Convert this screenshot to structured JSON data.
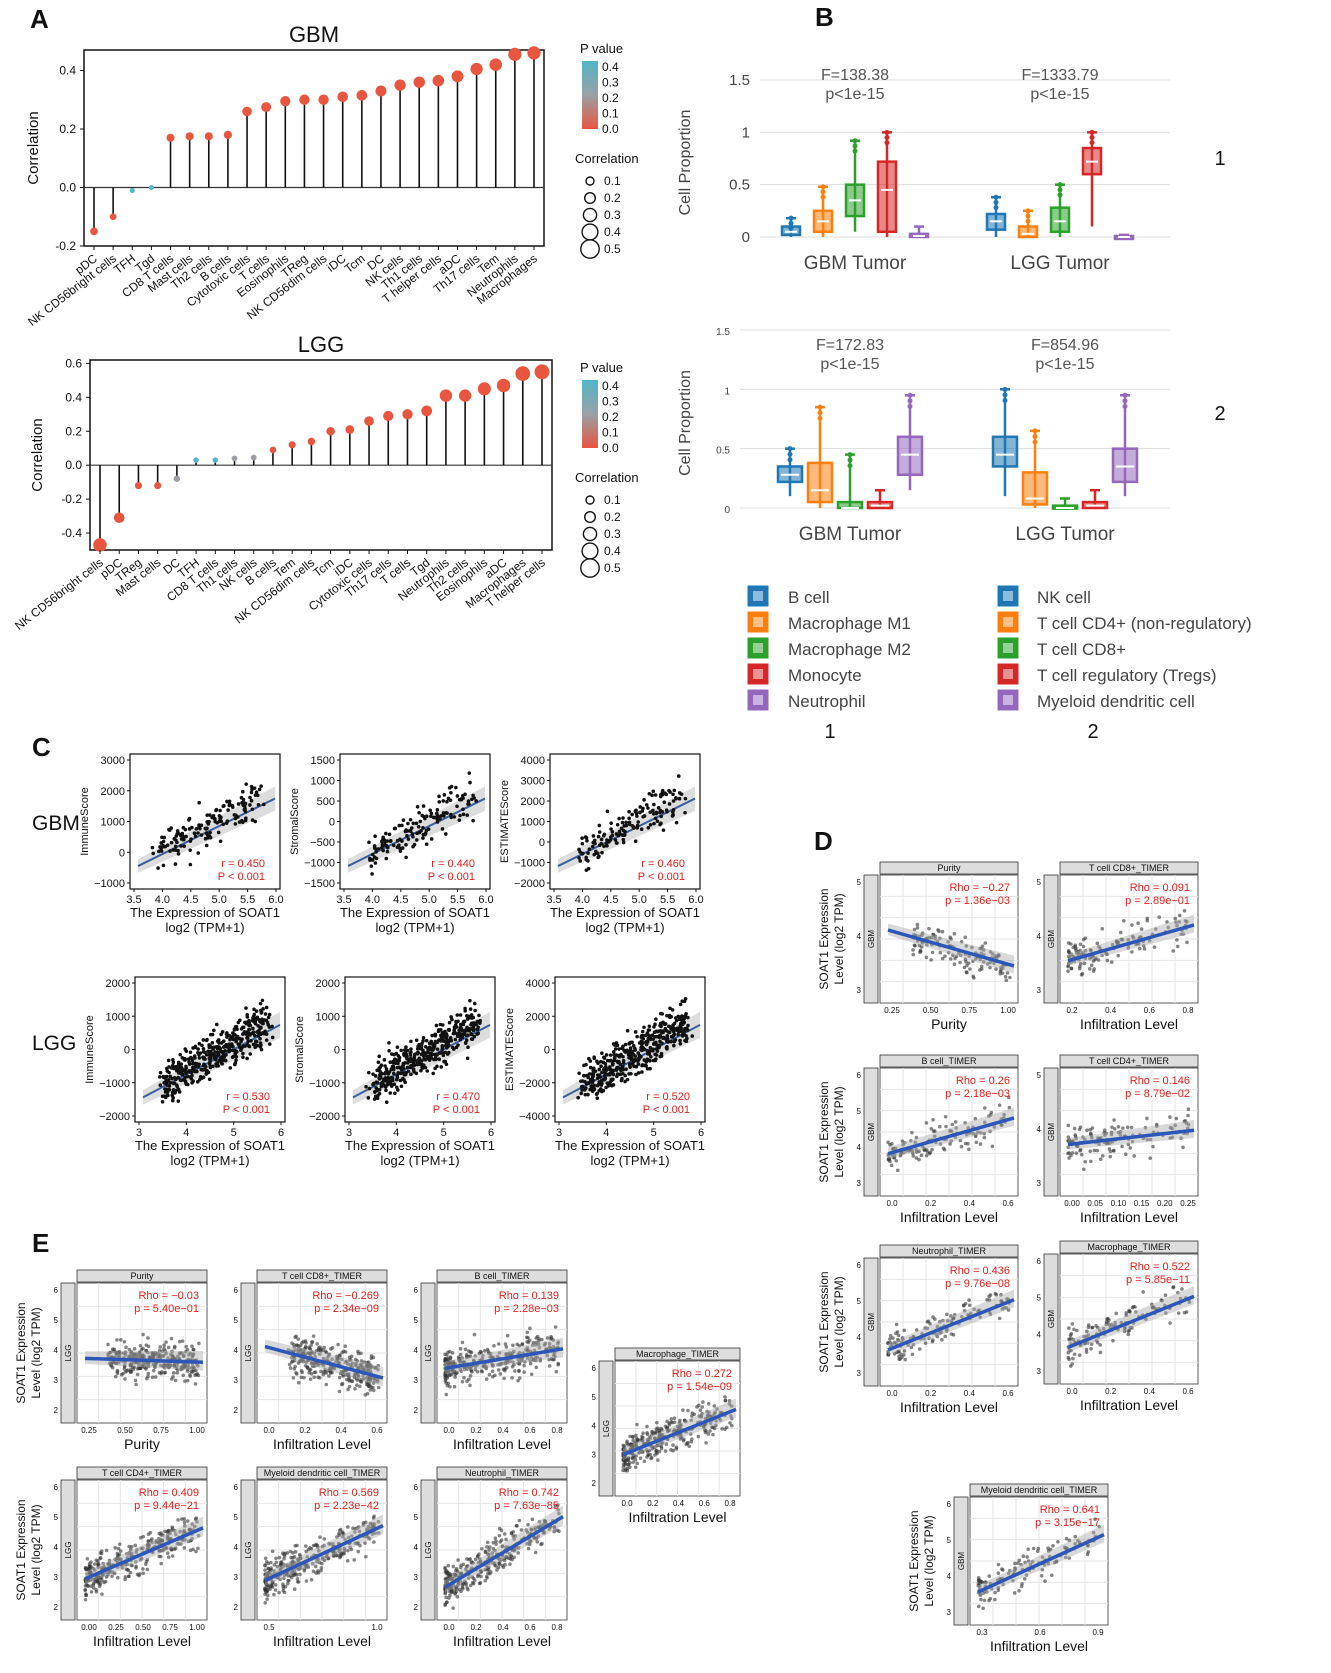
{
  "panels": {
    "A": "A",
    "B": "B",
    "C": "C",
    "D": "D",
    "E": "E"
  },
  "colors": {
    "low_p": "#e8563f",
    "high_p": "#4fb7c9",
    "mid_p": "#9aa0a6",
    "reg_line": "#3b5e9c",
    "timer_line": "#2c56b8",
    "red_text": "#e0201b",
    "box_b": "#1f77b4",
    "box_orange": "#ff7f0e",
    "box_green": "#2ca02c",
    "box_red": "#d62728",
    "box_purple": "#9467bd"
  },
  "chart_data": [
    {
      "id": "A-GBM",
      "type": "lollipop",
      "title": "GBM",
      "ylabel": "Correlation",
      "ylim": [
        -0.2,
        0.47
      ],
      "yticks": [
        "0.4",
        "0.2",
        "0.0",
        "-0.2"
      ],
      "categories": [
        "pDC",
        "NK CD56bright cells",
        "TFH",
        "Tgd",
        "CD8 T cells",
        "Mast cells",
        "Th2 cells",
        "B cells",
        "Cytotoxic cells",
        "T cells",
        "Eosinophils",
        "TReg",
        "NK CD56dim cells",
        "iDC",
        "Tcm",
        "DC",
        "NK cells",
        "Th1 cells",
        "T helper cells",
        "aDC",
        "Th17 cells",
        "Tem",
        "Neutrophils",
        "Macrophages"
      ],
      "values": [
        -0.15,
        -0.1,
        -0.01,
        0.0,
        0.17,
        0.175,
        0.175,
        0.18,
        0.26,
        0.275,
        0.295,
        0.3,
        0.3,
        0.31,
        0.315,
        0.33,
        0.35,
        0.36,
        0.365,
        0.38,
        0.405,
        0.42,
        0.455,
        0.46
      ],
      "pvalues": [
        0.0,
        0.02,
        0.35,
        0.4,
        0,
        0,
        0,
        0,
        0,
        0,
        0,
        0,
        0,
        0,
        0,
        0,
        0,
        0,
        0,
        0,
        0,
        0,
        0,
        0
      ],
      "legend": {
        "p_title": "P value",
        "p_ticks": [
          "0.4",
          "0.3",
          "0.2",
          "0.1",
          "0.0"
        ],
        "size_title": "Correlation",
        "size_ticks": [
          "0.1",
          "0.2",
          "0.3",
          "0.4",
          "0.5"
        ]
      }
    },
    {
      "id": "A-LGG",
      "type": "lollipop",
      "title": "LGG",
      "ylabel": "Correlation",
      "ylim": [
        -0.5,
        0.62
      ],
      "yticks": [
        "0.6",
        "0.4",
        "0.2",
        "0.0",
        "-0.2",
        "-0.4"
      ],
      "categories": [
        "NK CD56bright cells",
        "pDC",
        "TReg",
        "Mast cells",
        "DC",
        "TFH",
        "CD8 T cells",
        "Th1 cells",
        "NK cells",
        "B cells",
        "Tem",
        "NK CD56dim cells",
        "Tcm",
        "iDC",
        "Cytotoxic cells",
        "Th17 cells",
        "T cells",
        "Tgd",
        "Neutrophils",
        "Th2 cells",
        "Eosinophils",
        "aDC",
        "Macrophages",
        "T helper cells"
      ],
      "values": [
        -0.47,
        -0.31,
        -0.12,
        -0.12,
        -0.08,
        0.03,
        0.03,
        0.04,
        0.045,
        0.09,
        0.12,
        0.14,
        0.2,
        0.21,
        0.26,
        0.29,
        0.3,
        0.32,
        0.41,
        0.41,
        0.45,
        0.47,
        0.54,
        0.55
      ],
      "pvalues": [
        0,
        0,
        0,
        0,
        0.2,
        0.4,
        0.4,
        0.25,
        0.25,
        0,
        0,
        0,
        0,
        0,
        0,
        0,
        0,
        0,
        0,
        0,
        0,
        0,
        0,
        0
      ],
      "legend": {
        "p_title": "P value",
        "p_ticks": [
          "0.4",
          "0.3",
          "0.2",
          "0.1",
          "0.0"
        ],
        "size_title": "Correlation",
        "size_ticks": [
          "0.1",
          "0.2",
          "0.3",
          "0.4",
          "0.5"
        ]
      }
    },
    {
      "id": "B-1",
      "type": "box",
      "ylabel": "Cell Proportion",
      "yticks": [
        "1.5",
        "1",
        "0.5",
        "0"
      ],
      "ylim": [
        0,
        1.5
      ],
      "groups": [
        "GBM Tumor",
        "LGG Tumor"
      ],
      "stats": [
        {
          "F": "F=138.38",
          "p": "p<1e-15"
        },
        {
          "F": "F=1333.79",
          "p": "p<1e-15"
        }
      ],
      "series": [
        "B cell",
        "Macrophage M1",
        "Macrophage M2",
        "Monocyte",
        "Neutrophil"
      ],
      "boxes": [
        [
          [
            0,
            0.02,
            0.05,
            0.1,
            0.18
          ],
          [
            0,
            0.05,
            0.15,
            0.25,
            0.48
          ],
          [
            0.05,
            0.2,
            0.35,
            0.5,
            0.92
          ],
          [
            0,
            0.05,
            0.45,
            0.72,
            1.0
          ],
          [
            0,
            0,
            0.01,
            0.03,
            0.1
          ]
        ],
        [
          [
            0,
            0.07,
            0.15,
            0.22,
            0.38
          ],
          [
            0,
            0,
            0.03,
            0.1,
            0.25
          ],
          [
            0,
            0.05,
            0.15,
            0.28,
            0.5
          ],
          [
            0.1,
            0.6,
            0.72,
            0.85,
            1.0
          ],
          [
            0,
            0,
            0.0,
            0.01,
            0.02
          ]
        ]
      ],
      "marker": "1"
    },
    {
      "id": "B-2",
      "type": "box",
      "ylabel": "Cell Proportion",
      "yticks": [
        "1.5",
        "1",
        "0.5",
        "0"
      ],
      "ylim": [
        0,
        1.5
      ],
      "groups": [
        "GBM Tumor",
        "LGG Tumor"
      ],
      "stats": [
        {
          "F": "F=172.83",
          "p": "p<1e-15"
        },
        {
          "F": "F=854.96",
          "p": "p<1e-15"
        }
      ],
      "series": [
        "NK cell",
        "T cell CD4+ (non-regulatory)",
        "T cell CD8+",
        "T cell regulatory (Tregs)",
        "Myeloid dendritic cell"
      ],
      "boxes": [
        [
          [
            0.1,
            0.22,
            0.28,
            0.35,
            0.5
          ],
          [
            0,
            0.05,
            0.15,
            0.38,
            0.85
          ],
          [
            0,
            0,
            0.0,
            0.05,
            0.45
          ],
          [
            0,
            0,
            0.02,
            0.05,
            0.15
          ],
          [
            0.15,
            0.28,
            0.45,
            0.6,
            0.95
          ]
        ],
        [
          [
            0.1,
            0.35,
            0.45,
            0.6,
            1.0
          ],
          [
            0,
            0.03,
            0.08,
            0.3,
            0.65
          ],
          [
            0,
            0,
            0.0,
            0.02,
            0.08
          ],
          [
            0,
            0,
            0.02,
            0.05,
            0.15
          ],
          [
            0.1,
            0.22,
            0.35,
            0.5,
            0.95
          ]
        ]
      ],
      "marker": "2"
    },
    {
      "id": "C",
      "type": "scatter_grid",
      "rows": [
        "GBM",
        "LGG"
      ],
      "plots": [
        {
          "row": 0,
          "ylabel": "ImmuneScore",
          "yticks": [
            "3000",
            "2000",
            "1000",
            "0",
            "−1000"
          ],
          "xticks": [
            "3.5",
            "4.0",
            "4.5",
            "5.0",
            "5.5",
            "6.0"
          ],
          "r": "r = 0.450",
          "p": "P < 0.001",
          "xlabel": "The Expression of SOAT1",
          "xlabel2": "log2 (TPM+1)"
        },
        {
          "row": 0,
          "ylabel": "StromalScore",
          "yticks": [
            "1500",
            "1000",
            "500",
            "0",
            "−500",
            "−1000",
            "−1500"
          ],
          "xticks": [
            "3.5",
            "4.0",
            "4.5",
            "5.0",
            "5.5",
            "6.0"
          ],
          "r": "r = 0.440",
          "p": "P < 0.001",
          "xlabel": "The Expression of SOAT1",
          "xlabel2": "log2 (TPM+1)"
        },
        {
          "row": 0,
          "ylabel": "ESTIMATEScore",
          "yticks": [
            "4000",
            "3000",
            "2000",
            "1000",
            "0",
            "−1000",
            "−2000"
          ],
          "xticks": [
            "3.5",
            "4.0",
            "4.5",
            "5.0",
            "5.5",
            "6.0"
          ],
          "r": "r = 0.460",
          "p": "P < 0.001",
          "xlabel": "The Expression of SOAT1",
          "xlabel2": "log2 (TPM+1)"
        },
        {
          "row": 1,
          "ylabel": "ImmuneScore",
          "yticks": [
            "2000",
            "1000",
            "0",
            "−1000",
            "−2000"
          ],
          "xticks": [
            "3",
            "4",
            "5",
            "6"
          ],
          "r": "r = 0.530",
          "p": "P < 0.001",
          "xlabel": "The Expression of SOAT1",
          "xlabel2": "log2 (TPM+1)"
        },
        {
          "row": 1,
          "ylabel": "StromalScore",
          "yticks": [
            "2000",
            "1000",
            "0",
            "−1000",
            "−2000"
          ],
          "xticks": [
            "3",
            "4",
            "5",
            "6"
          ],
          "r": "r = 0.470",
          "p": "P < 0.001",
          "xlabel": "The Expression of SOAT1",
          "xlabel2": "log2 (TPM+1)"
        },
        {
          "row": 1,
          "ylabel": "ESTIMATEScore",
          "yticks": [
            "4000",
            "2000",
            "0",
            "−2000",
            "−4000"
          ],
          "xticks": [
            "3",
            "4",
            "5",
            "6"
          ],
          "r": "r = 0.520",
          "p": "P < 0.001",
          "xlabel": "The Expression of SOAT1",
          "xlabel2": "log2 (TPM+1)"
        }
      ]
    },
    {
      "id": "D",
      "type": "timer_grid",
      "ylabel": "SOAT1 Expression",
      "ylabel2": "Level (log2 TPM)",
      "side": "GBM",
      "plots": [
        {
          "title": "Purity",
          "rho": "Rho = −0.27",
          "p": "p = 1.36e−03",
          "xlabel": "Purity",
          "xticks": [
            "0.25",
            "0.50",
            "0.75",
            "1.00"
          ],
          "yticks": [
            "5",
            "4",
            "3"
          ],
          "slope": -1
        },
        {
          "title": "T cell CD8+_TIMER",
          "rho": "Rho = 0.091",
          "p": "p = 2.89e−01",
          "xlabel": "Infiltration Level",
          "xticks": [
            "0.2",
            "0.4",
            "0.6",
            "0.8"
          ],
          "yticks": [
            "5",
            "4",
            "3"
          ],
          "slope": 1
        },
        {
          "title": "B cell_TIMER",
          "rho": "Rho = 0.26",
          "p": "p = 2.18e−03",
          "xlabel": "Infiltration Level",
          "xticks": [
            "0.0",
            "0.2",
            "0.4",
            "0.6"
          ],
          "yticks": [
            "6",
            "5",
            "4",
            "3"
          ],
          "slope": 1
        },
        {
          "title": "T cell CD4+_TIMER",
          "rho": "Rho = 0.146",
          "p": "p = 8.79e−02",
          "xlabel": "Infiltration Level",
          "xticks": [
            "0.00",
            "0.05",
            "0.10",
            "0.15",
            "0.20",
            "0.25"
          ],
          "yticks": [
            "5",
            "4",
            "3"
          ],
          "slope": 0.4
        },
        {
          "title": "Neutrophil_TIMER",
          "rho": "Rho = 0.436",
          "p": "p = 9.76e−08",
          "xlabel": "Infiltration Level",
          "xticks": [
            "0.0",
            "0.2",
            "0.4",
            "0.6"
          ],
          "yticks": [
            "6",
            "5",
            "4",
            "3"
          ],
          "slope": 1.4
        },
        {
          "title": "Macrophage_TIMER",
          "rho": "Rho = 0.522",
          "p": "p = 5.85e−11",
          "xlabel": "Infiltration Level",
          "xticks": [
            "0.0",
            "0.2",
            "0.4",
            "0.6"
          ],
          "yticks": [
            "6",
            "5",
            "4",
            "3"
          ],
          "slope": 1.4
        },
        {
          "title": "Myeloid dendritic cell_TIMER",
          "rho": "Rho = 0.641",
          "p": "p = 3.15e−17",
          "xlabel": "Infiltration Level",
          "xticks": [
            "0.3",
            "0.6",
            "0.9"
          ],
          "yticks": [
            "6",
            "5",
            "4",
            "3"
          ],
          "slope": 1.6
        }
      ]
    },
    {
      "id": "E",
      "type": "timer_grid",
      "ylabel": "SOAT1 Expression",
      "ylabel2": "Level (log2 TPM)",
      "side": "LGG",
      "plots": [
        {
          "title": "Purity",
          "rho": "Rho = −0.03",
          "p": "p = 5.40e−01",
          "xlabel": "Purity",
          "xticks": [
            "0.25",
            "0.50",
            "0.75",
            "1.00"
          ],
          "yticks": [
            "6",
            "5",
            "4",
            "3",
            "2"
          ],
          "slope": -0.1
        },
        {
          "title": "T cell CD8+_TIMER",
          "rho": "Rho = −0.269",
          "p": "p = 2.34e−09",
          "xlabel": "Infiltration Level",
          "xticks": [
            "0.0",
            "0.2",
            "0.4",
            "0.6"
          ],
          "yticks": [
            "6",
            "5",
            "4",
            "3",
            "2"
          ],
          "slope": -0.8
        },
        {
          "title": "B cell_TIMER",
          "rho": "Rho = 0.139",
          "p": "p = 2.28e−03",
          "xlabel": "Infiltration Level",
          "xticks": [
            "0.0",
            "0.2",
            "0.4",
            "0.6",
            "0.8"
          ],
          "yticks": [
            "6",
            "5",
            "4",
            "3",
            "2"
          ],
          "slope": 0.5
        },
        {
          "title": "Macrophage_TIMER",
          "rho": "Rho = 0.272",
          "p": "p = 1.54e−09",
          "xlabel": "Infiltration Level",
          "xticks": [
            "0.0",
            "0.2",
            "0.4",
            "0.6",
            "0.8"
          ],
          "yticks": [
            "6",
            "5",
            "4",
            "3",
            "2"
          ],
          "slope": 1.2
        },
        {
          "title": "T cell CD4+_TIMER",
          "rho": "Rho = 0.409",
          "p": "p = 9.44e−21",
          "xlabel": "Infiltration Level",
          "xticks": [
            "0.00",
            "0.25",
            "0.50",
            "0.75",
            "1.00"
          ],
          "yticks": [
            "6",
            "5",
            "4",
            "3",
            "2"
          ],
          "slope": 1.3
        },
        {
          "title": "Myeloid dendritic cell_TIMER",
          "rho": "Rho = 0.569",
          "p": "p = 2.23e−42",
          "xlabel": "Infiltration Level",
          "xticks": [
            "0.5",
            "1.0"
          ],
          "yticks": [
            "6",
            "5",
            "4",
            "3",
            "2"
          ],
          "slope": 1.4
        },
        {
          "title": "Neutrophil_TIMER",
          "rho": "Rho = 0.742",
          "p": "p = 7.63e−85",
          "xlabel": "Infiltration Level",
          "xticks": [
            "0.0",
            "0.2",
            "0.4",
            "0.6",
            "0.8"
          ],
          "yticks": [
            "6",
            "5",
            "4",
            "3",
            "2"
          ],
          "slope": 1.8
        }
      ]
    }
  ]
}
